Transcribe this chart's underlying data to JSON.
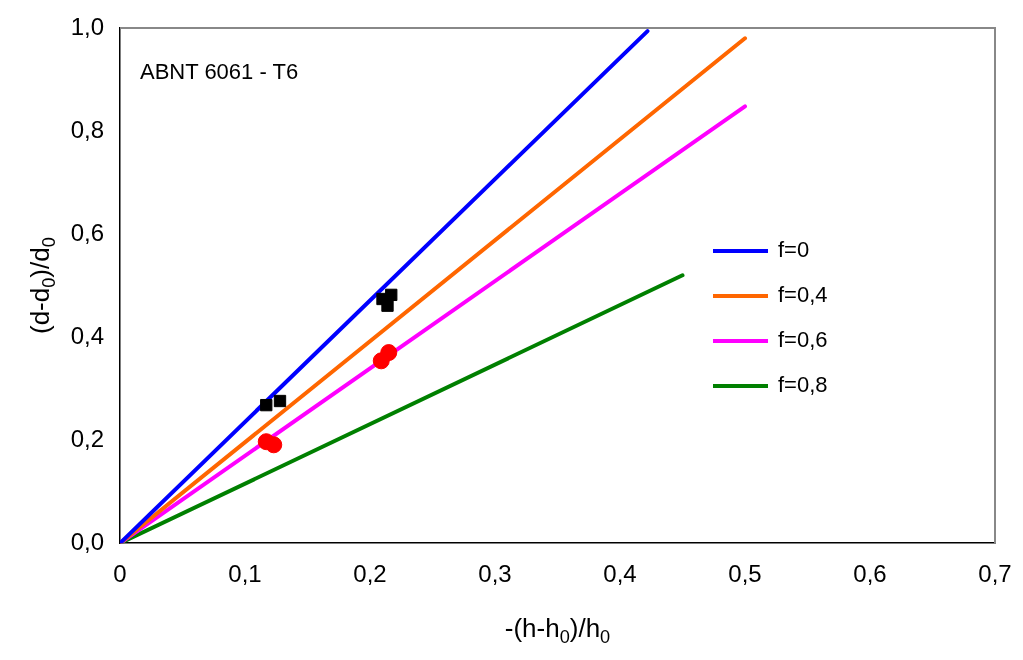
{
  "chart_data": {
    "type": "line",
    "xlabel": "-(h-h$_{0}$)/h$_{0}$",
    "ylabel": "(d-d$_{0}$)/d$_{0}$",
    "annotations": [
      "ABNT 6061 - T6"
    ],
    "xlim": [
      0,
      0.7
    ],
    "ylim": [
      0,
      1
    ],
    "xticks": [
      {
        "value": 0,
        "label": "0"
      },
      {
        "value": 0.1,
        "label": "0,1"
      },
      {
        "value": 0.2,
        "label": "0,2"
      },
      {
        "value": 0.3,
        "label": "0,3"
      },
      {
        "value": 0.4,
        "label": "0,4"
      },
      {
        "value": 0.5,
        "label": "0,5"
      },
      {
        "value": 0.6,
        "label": "0,6"
      },
      {
        "value": 0.7,
        "label": "0,7"
      }
    ],
    "yticks": [
      {
        "value": 0,
        "label": "0,0"
      },
      {
        "value": 0.2,
        "label": "0,2"
      },
      {
        "value": 0.4,
        "label": "0,4"
      },
      {
        "value": 0.6,
        "label": "0,6"
      },
      {
        "value": 0.8,
        "label": "0,8"
      },
      {
        "value": 1,
        "label": "1,0"
      }
    ],
    "grid": false,
    "legend": "right",
    "series": [
      {
        "name": "f=0",
        "color": "#0000ff",
        "marker": "none",
        "x": [
          0,
          0.422
        ],
        "values": [
          0,
          0.994
        ]
      },
      {
        "name": "f=0,4",
        "color": "#ff6600",
        "marker": "none",
        "x": [
          0,
          0.5
        ],
        "values": [
          0,
          0.98
        ]
      },
      {
        "name": "f=0,6",
        "color": "#ff00ff",
        "marker": "none",
        "x": [
          0,
          0.5
        ],
        "values": [
          0,
          0.848
        ]
      },
      {
        "name": "f=0,8",
        "color": "#008000",
        "marker": "none",
        "x": [
          0,
          0.45
        ],
        "values": [
          0,
          0.52
        ]
      },
      {
        "type": "scatter",
        "color": "#ff0000",
        "marker": "circle",
        "x": [
          0.117,
          0.123,
          0.209,
          0.215
        ],
        "values": [
          0.197,
          0.191,
          0.354,
          0.37
        ]
      },
      {
        "type": "scatter",
        "color": "#000000",
        "marker": "square",
        "x": [
          0.117,
          0.128,
          0.21,
          0.217,
          0.214
        ],
        "values": [
          0.268,
          0.276,
          0.474,
          0.482,
          0.461
        ]
      }
    ]
  }
}
